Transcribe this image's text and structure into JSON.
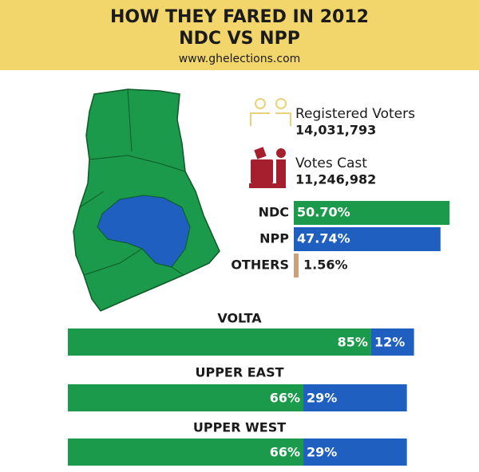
{
  "header": {
    "title_line1": "HOW THEY FARED IN 2012",
    "title_line2": "NDC VS NPP",
    "source": "www.ghelections.com"
  },
  "stats": {
    "registered_label": "Registered Voters",
    "registered_value": "14,031,793",
    "cast_label": "Votes Cast",
    "cast_value": "11,246,982"
  },
  "chart_data": [
    {
      "type": "bar",
      "categories": [
        "NDC",
        "NPP",
        "OTHERS"
      ],
      "values": [
        50.7,
        47.74,
        1.56
      ],
      "value_labels": [
        "50.70%",
        "47.74%",
        "1.56%"
      ],
      "colors": [
        "#1a9a4a",
        "#1f5fbf",
        "#c9a07a"
      ]
    },
    {
      "type": "stacked-bar",
      "categories": [
        "VOLTA",
        "UPPER EAST",
        "UPPER WEST"
      ],
      "series": [
        {
          "color": "#1a9a4a",
          "values": [
            85,
            66,
            66
          ],
          "value_labels": [
            "85%",
            "66%",
            "66%"
          ]
        },
        {
          "color": "#1f5fbf",
          "values": [
            12,
            29,
            29
          ],
          "value_labels": [
            "12%",
            "29%",
            "29%"
          ]
        }
      ]
    }
  ]
}
